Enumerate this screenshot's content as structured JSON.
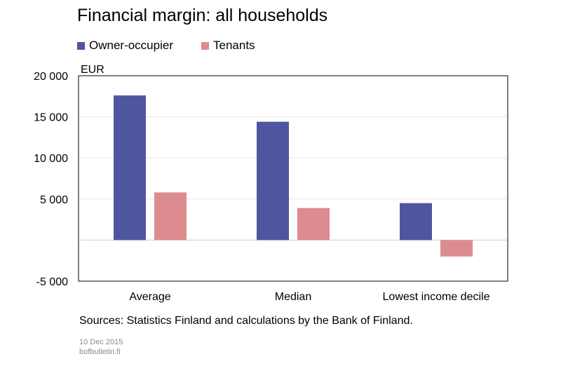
{
  "chart_data": {
    "type": "bar",
    "title": "Financial margin: all households",
    "ylabel": "EUR",
    "xlabel": "",
    "categories": [
      "Average",
      "Median",
      "Lowest income decile"
    ],
    "series": [
      {
        "name": "Owner-occupier",
        "color": "#5055a0",
        "values": [
          17600,
          14400,
          4500
        ]
      },
      {
        "name": "Tenants",
        "color": "#dc8c8f",
        "values": [
          5800,
          3900,
          -2000
        ]
      }
    ],
    "ylim": [
      -5000,
      20000
    ],
    "yticks": [
      -5000,
      0,
      5000,
      10000,
      15000,
      20000
    ],
    "ytick_labels": [
      "-5 000",
      "",
      "5 000",
      "10 000",
      "15 000",
      "20 000"
    ],
    "grid": true,
    "legend_position": "top-left"
  },
  "sources": "Sources: Statistics Finland and calculations by the Bank of Finland.",
  "date": "10 Dec 2015",
  "site": "bofbulletin.fi"
}
